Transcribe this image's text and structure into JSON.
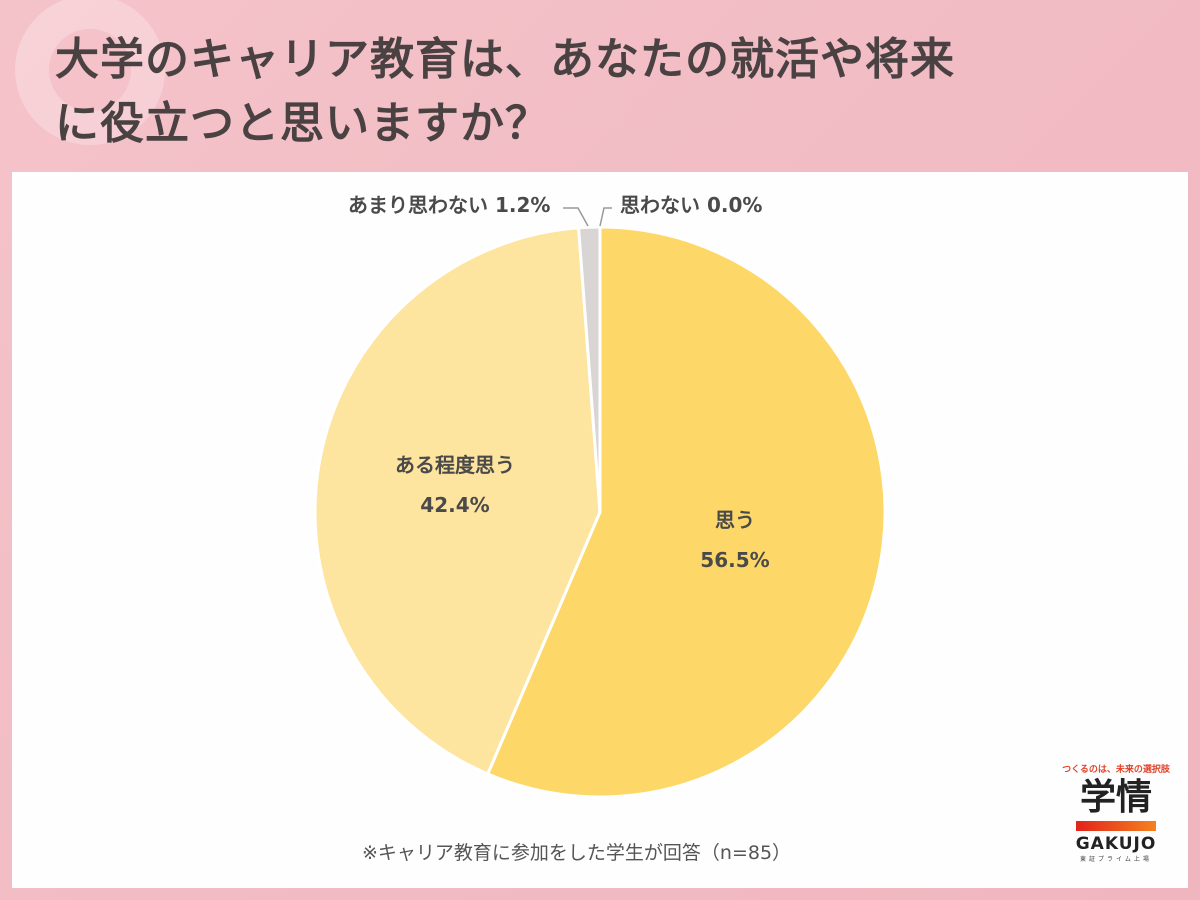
{
  "title": {
    "line1": "大学のキャリア教育は、あなたの就活や将来",
    "line2": "に役立つと思いますか？"
  },
  "chart_data": {
    "type": "pie",
    "title": "大学のキャリア教育は、あなたの就活や将来に役立つと思いますか？",
    "categories": [
      "思う",
      "ある程度思う",
      "あまり思わない",
      "思わない"
    ],
    "values": [
      56.5,
      42.4,
      1.2,
      0.0
    ],
    "unit": "%",
    "colors": [
      "#fdd868",
      "#fde49f",
      "#d9d5d5",
      "#bdbdbd"
    ],
    "start_angle": "12 o'clock",
    "direction": "clockwise",
    "labels": [
      {
        "name": "思う",
        "value": "56.5%"
      },
      {
        "name": "ある程度思う",
        "value": "42.4%"
      },
      {
        "name": "あまり思わない",
        "value": "1.2%"
      },
      {
        "name": "思わない",
        "value": "0.0%"
      }
    ],
    "note": "※キャリア教育に参加をした学生が回答（n=85）",
    "n": 85
  },
  "labels": {
    "omou_name": "思う",
    "omou_value": "56.5%",
    "aru_name": "ある程度思う",
    "aru_value": "42.4%",
    "amari": "あまり思わない 1.2%",
    "omowanai": "思わない 0.0%"
  },
  "note": "※キャリア教育に参加をした学生が回答（n=85）",
  "logo": {
    "tagline": "つくるのは、未来の選択肢",
    "kanji": "学情",
    "name": "GAKUJO",
    "sub": "東証プライム上場"
  },
  "colors": {
    "background": "#f2bcc4",
    "panel": "#fefefe",
    "title_text": "#4a4242"
  }
}
